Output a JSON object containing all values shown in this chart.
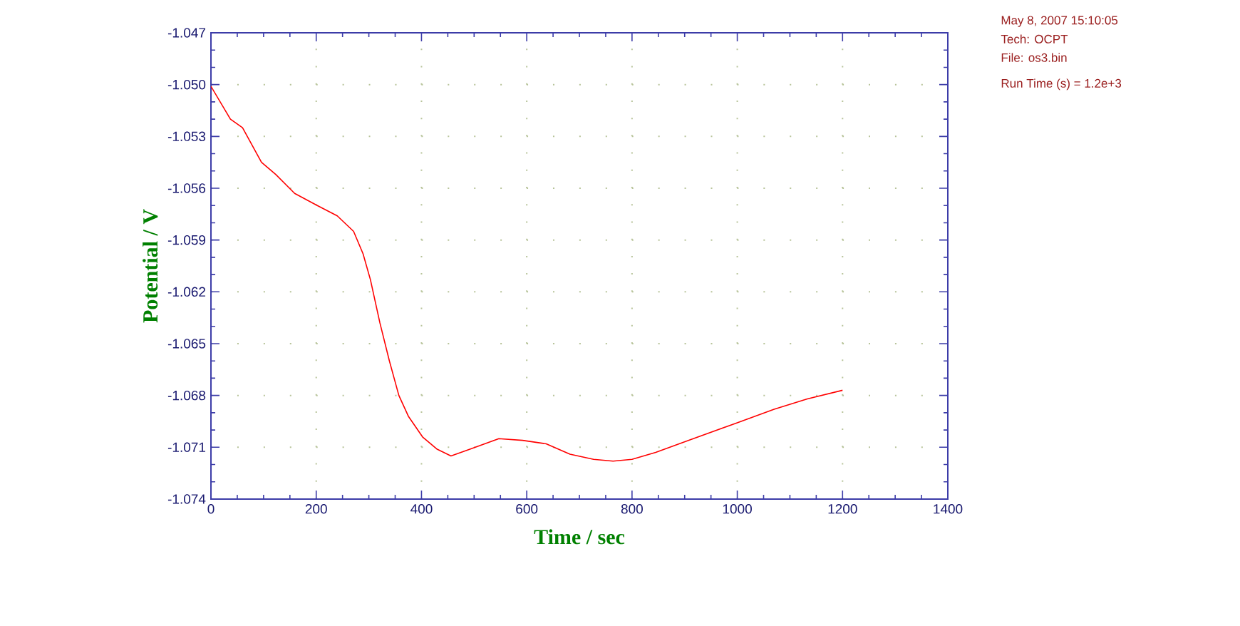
{
  "chart_data": {
    "type": "line",
    "xlabel": "Time / sec",
    "ylabel": "Potential / V",
    "annotations": [
      "May 8, 2007    15:10:05",
      "Tech: OCPT",
      "File: os3.bin",
      "Run Time (s) = 1.2e+3"
    ],
    "x": [
      0,
      37,
      60,
      96,
      123,
      159,
      202,
      240,
      271,
      289,
      303,
      321,
      339,
      357,
      375,
      402,
      429,
      456,
      493,
      547,
      592,
      637,
      682,
      727,
      764,
      800,
      845,
      908,
      998,
      1070,
      1133,
      1200
    ],
    "series": [
      {
        "color": "#ff0000",
        "values": [
          -1.0501,
          -1.052,
          -1.0525,
          -1.0545,
          -1.0552,
          -1.0563,
          -1.057,
          -1.0576,
          -1.0585,
          -1.0598,
          -1.0613,
          -1.0638,
          -1.066,
          -1.068,
          -1.0692,
          -1.0704,
          -1.0711,
          -1.0715,
          -1.0711,
          -1.0705,
          -1.0706,
          -1.0708,
          -1.0714,
          -1.0717,
          -1.0718,
          -1.0717,
          -1.0713,
          -1.0706,
          -1.0696,
          -1.0688,
          -1.0682,
          -1.0677
        ]
      }
    ],
    "xlim": [
      0,
      1400
    ],
    "ylim": [
      -1.074,
      -1.047
    ],
    "xticks": [
      0,
      200,
      400,
      600,
      800,
      1000,
      1200,
      1400
    ],
    "yticks": [
      -1.047,
      {
        "value": -1.05,
        "label": "-1.050"
      },
      -1.053,
      -1.056,
      -1.059,
      -1.062,
      -1.065,
      -1.068,
      -1.071,
      -1.074
    ],
    "grid": true
  }
}
